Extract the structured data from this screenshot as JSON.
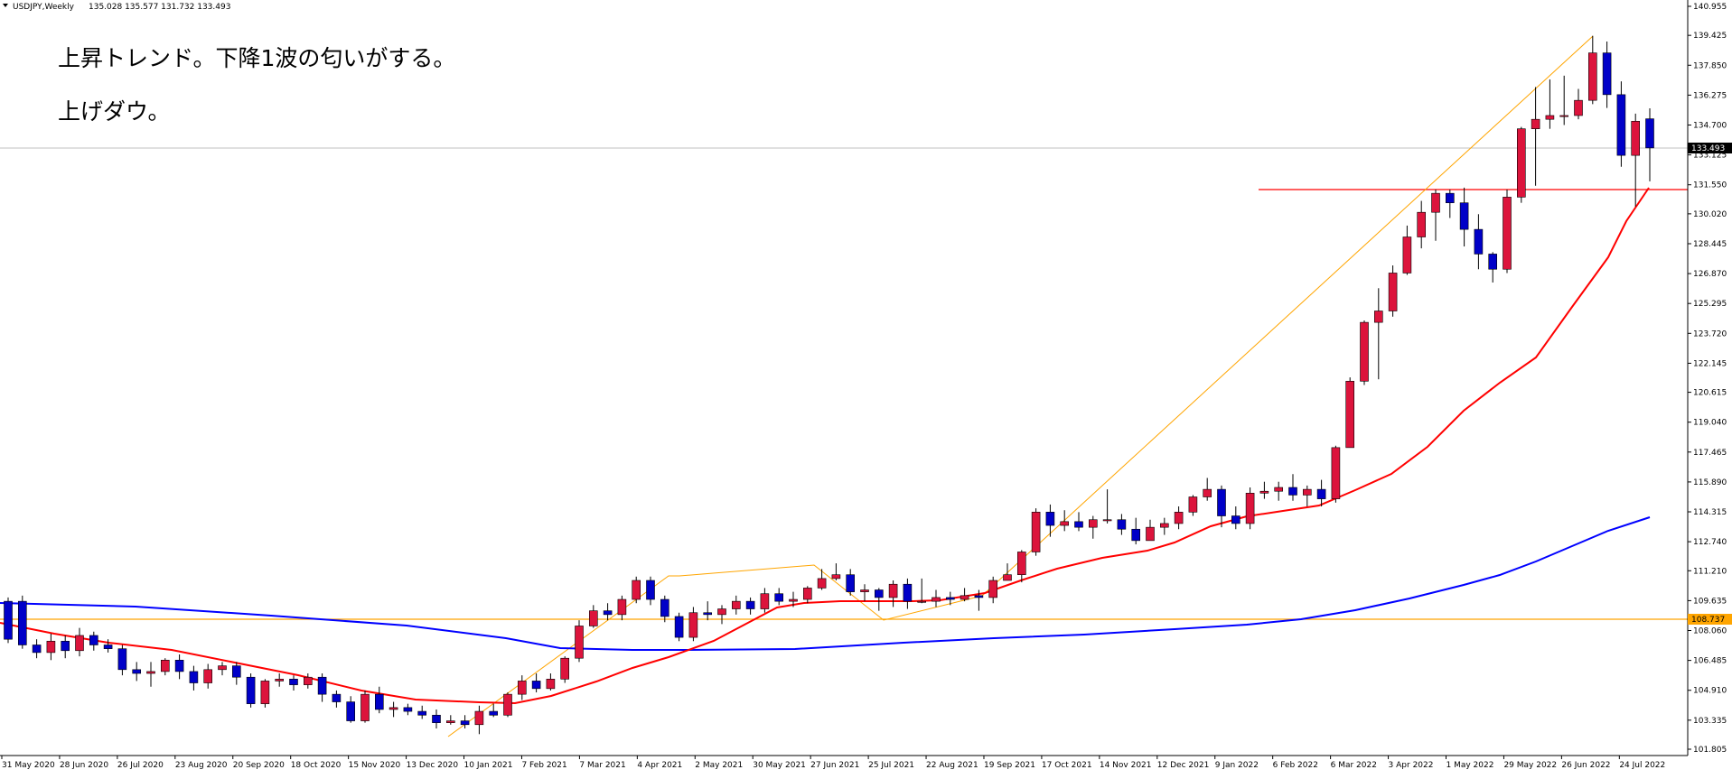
{
  "header": {
    "symbol_info": "USDJPY,Weekly",
    "ohlc": "135.028 135.577 131.732 133.493"
  },
  "annotations": [
    "上昇トレンド。下降1波の匂いがする。",
    "上げダウ。"
  ],
  "price_labels": {
    "current": "133.493",
    "support": "108.737"
  },
  "colors": {
    "bull": "#dc143c",
    "bear": "#0000c8",
    "ma_fast": "#ff0000",
    "ma_slow": "#0000ff",
    "trendline": "#ffa500",
    "resistance": "#ff0000",
    "grid": "#c0c0c0"
  },
  "chart_data": {
    "type": "candlestick",
    "timeframe": "weekly",
    "y_axis": {
      "min": 101.805,
      "max": 140.955,
      "ticks": [
        "140.955",
        "139.425",
        "137.850",
        "136.275",
        "134.700",
        "133.125",
        "131.550",
        "130.020",
        "128.445",
        "126.870",
        "125.295",
        "123.720",
        "122.145",
        "120.615",
        "119.040",
        "117.465",
        "115.890",
        "114.315",
        "112.740",
        "111.210",
        "109.635",
        "108.060",
        "106.485",
        "104.910",
        "103.335",
        "101.805"
      ]
    },
    "x_axis": {
      "labels": [
        "31 May 2020",
        "28 Jun 2020",
        "26 Jul 2020",
        "23 Aug 2020",
        "20 Sep 2020",
        "18 Oct 2020",
        "15 Nov 2020",
        "13 Dec 2020",
        "10 Jan 2021",
        "7 Feb 2021",
        "7 Mar 2021",
        "4 Apr 2021",
        "2 May 2021",
        "30 May 2021",
        "27 Jun 2021",
        "25 Jul 2021",
        "22 Aug 2021",
        "19 Sep 2021",
        "17 Oct 2021",
        "14 Nov 2021",
        "12 Dec 2021",
        "9 Jan 2022",
        "6 Feb 2022",
        "6 Mar 2022",
        "3 Apr 2022",
        "1 May 2022",
        "29 May 2022",
        "26 Jun 2022",
        "24 Jul 2022"
      ]
    },
    "candles": [
      [
        109.6,
        107.6,
        109.8,
        107.4
      ],
      [
        109.6,
        107.3,
        109.9,
        107.1
      ],
      [
        107.3,
        106.9,
        107.6,
        106.6
      ],
      [
        106.9,
        107.5,
        107.9,
        106.5
      ],
      [
        107.5,
        107.0,
        107.8,
        106.6
      ],
      [
        107.0,
        107.8,
        108.2,
        106.7
      ],
      [
        107.8,
        107.3,
        108.0,
        107.0
      ],
      [
        107.3,
        107.1,
        107.6,
        106.9
      ],
      [
        107.1,
        106.0,
        107.3,
        105.7
      ],
      [
        106.0,
        105.8,
        106.4,
        105.4
      ],
      [
        105.8,
        105.9,
        106.4,
        105.1
      ],
      [
        105.9,
        106.5,
        106.6,
        105.7
      ],
      [
        106.5,
        105.9,
        106.8,
        105.5
      ],
      [
        105.9,
        105.3,
        106.2,
        104.9
      ],
      [
        105.3,
        106.0,
        106.3,
        105.0
      ],
      [
        106.0,
        106.2,
        106.4,
        105.7
      ],
      [
        106.2,
        105.6,
        106.4,
        105.2
      ],
      [
        105.6,
        104.2,
        105.8,
        104.0
      ],
      [
        104.2,
        105.4,
        105.5,
        104.0
      ],
      [
        105.4,
        105.5,
        105.8,
        105.1
      ],
      [
        105.5,
        105.2,
        105.7,
        104.9
      ],
      [
        105.2,
        105.6,
        105.8,
        105.0
      ],
      [
        105.6,
        104.7,
        105.8,
        104.3
      ],
      [
        104.7,
        104.3,
        104.9,
        104.0
      ],
      [
        104.3,
        103.3,
        104.6,
        103.2
      ],
      [
        103.3,
        104.7,
        104.9,
        103.2
      ],
      [
        104.7,
        103.9,
        105.1,
        103.7
      ],
      [
        103.9,
        104.0,
        104.3,
        103.5
      ],
      [
        104.0,
        103.8,
        104.2,
        103.6
      ],
      [
        103.8,
        103.6,
        104.1,
        103.4
      ],
      [
        103.6,
        103.2,
        103.9,
        102.9
      ],
      [
        103.2,
        103.3,
        103.6,
        103.1
      ],
      [
        103.3,
        103.1,
        103.6,
        102.9
      ],
      [
        103.1,
        103.8,
        104.1,
        102.6
      ],
      [
        103.8,
        103.6,
        104.2,
        103.5
      ],
      [
        103.6,
        104.7,
        104.8,
        103.5
      ],
      [
        104.7,
        105.4,
        105.7,
        104.4
      ],
      [
        105.4,
        105.0,
        105.8,
        104.8
      ],
      [
        105.0,
        105.5,
        105.8,
        104.9
      ],
      [
        105.5,
        106.6,
        106.7,
        105.3
      ],
      [
        106.6,
        108.3,
        108.6,
        106.4
      ],
      [
        108.3,
        109.1,
        109.4,
        108.2
      ],
      [
        109.1,
        108.9,
        109.5,
        108.6
      ],
      [
        108.9,
        109.7,
        109.9,
        108.6
      ],
      [
        109.7,
        110.7,
        110.9,
        109.5
      ],
      [
        110.7,
        109.7,
        110.9,
        109.4
      ],
      [
        109.7,
        108.8,
        109.9,
        108.5
      ],
      [
        108.8,
        107.7,
        109.0,
        107.5
      ],
      [
        107.7,
        109.0,
        109.3,
        107.5
      ],
      [
        109.0,
        108.9,
        109.6,
        108.6
      ],
      [
        108.9,
        109.2,
        109.4,
        108.4
      ],
      [
        109.2,
        109.6,
        109.9,
        108.9
      ],
      [
        109.6,
        109.2,
        109.8,
        108.9
      ],
      [
        109.2,
        110.0,
        110.3,
        109.0
      ],
      [
        110.0,
        109.6,
        110.3,
        109.4
      ],
      [
        109.6,
        109.7,
        110.1,
        109.3
      ],
      [
        109.7,
        110.3,
        110.4,
        109.5
      ],
      [
        110.3,
        110.8,
        111.3,
        110.2
      ],
      [
        110.8,
        111.0,
        111.6,
        110.7
      ],
      [
        111.0,
        110.1,
        111.3,
        109.9
      ],
      [
        110.1,
        110.2,
        110.5,
        109.6
      ],
      [
        110.2,
        109.8,
        110.3,
        109.1
      ],
      [
        109.8,
        110.5,
        110.7,
        109.3
      ],
      [
        110.5,
        109.6,
        110.8,
        109.2
      ],
      [
        109.6,
        109.6,
        110.8,
        109.5
      ],
      [
        109.6,
        109.8,
        110.2,
        109.3
      ],
      [
        109.8,
        109.7,
        110.1,
        109.4
      ],
      [
        109.7,
        109.9,
        110.3,
        109.6
      ],
      [
        109.9,
        109.8,
        110.2,
        109.1
      ],
      [
        109.8,
        110.7,
        110.9,
        109.5
      ],
      [
        110.7,
        111.0,
        111.6,
        110.8
      ],
      [
        111.0,
        112.2,
        112.3,
        110.6
      ],
      [
        112.2,
        114.3,
        114.5,
        112.0
      ],
      [
        114.3,
        113.6,
        114.7,
        113.0
      ],
      [
        113.6,
        113.8,
        114.4,
        113.3
      ],
      [
        113.8,
        113.5,
        114.3,
        113.3
      ],
      [
        113.5,
        113.9,
        114.1,
        112.9
      ],
      [
        113.9,
        113.9,
        115.5,
        113.7
      ],
      [
        113.9,
        113.4,
        114.2,
        113.1
      ],
      [
        113.4,
        112.8,
        114.0,
        112.6
      ],
      [
        112.8,
        113.5,
        113.9,
        113.2
      ],
      [
        113.5,
        113.7,
        114.0,
        113.1
      ],
      [
        113.7,
        114.3,
        114.6,
        113.4
      ],
      [
        114.3,
        115.1,
        115.2,
        114.1
      ],
      [
        115.1,
        115.5,
        116.1,
        114.9
      ],
      [
        115.5,
        114.1,
        115.7,
        113.5
      ],
      [
        114.1,
        113.7,
        114.6,
        113.4
      ],
      [
        113.7,
        115.3,
        115.6,
        113.4
      ],
      [
        115.3,
        115.4,
        115.9,
        115.0
      ],
      [
        115.4,
        115.6,
        115.9,
        114.9
      ],
      [
        115.6,
        115.2,
        116.3,
        114.9
      ],
      [
        115.2,
        115.5,
        115.7,
        114.6
      ],
      [
        115.5,
        115.0,
        116.0,
        114.6
      ],
      [
        115.0,
        117.7,
        117.8,
        114.8
      ],
      [
        117.7,
        121.2,
        121.4,
        117.7
      ],
      [
        121.2,
        124.3,
        124.4,
        121.0
      ],
      [
        124.3,
        124.9,
        126.1,
        121.3
      ],
      [
        124.9,
        126.9,
        127.3,
        124.6
      ],
      [
        126.9,
        128.8,
        129.4,
        126.8
      ],
      [
        128.8,
        130.1,
        130.7,
        128.2
      ],
      [
        130.1,
        131.1,
        131.3,
        128.6
      ],
      [
        131.1,
        130.6,
        131.3,
        129.8
      ],
      [
        130.6,
        129.2,
        131.4,
        128.3
      ],
      [
        129.2,
        127.9,
        130.0,
        127.1
      ],
      [
        127.9,
        127.1,
        128.0,
        126.4
      ],
      [
        127.1,
        130.9,
        131.3,
        126.9
      ],
      [
        130.9,
        134.5,
        134.6,
        130.6
      ],
      [
        134.5,
        135.0,
        136.7,
        131.5
      ],
      [
        135.0,
        135.2,
        137.1,
        134.5
      ],
      [
        135.2,
        135.2,
        137.3,
        134.7
      ],
      [
        135.2,
        136.0,
        136.6,
        135.0
      ],
      [
        136.0,
        138.5,
        139.4,
        135.8
      ],
      [
        138.5,
        136.3,
        139.1,
        135.6
      ],
      [
        136.3,
        133.1,
        137.0,
        132.5
      ],
      [
        133.1,
        134.9,
        135.3,
        130.4
      ],
      [
        135.028,
        133.493,
        135.577,
        131.732
      ]
    ]
  }
}
